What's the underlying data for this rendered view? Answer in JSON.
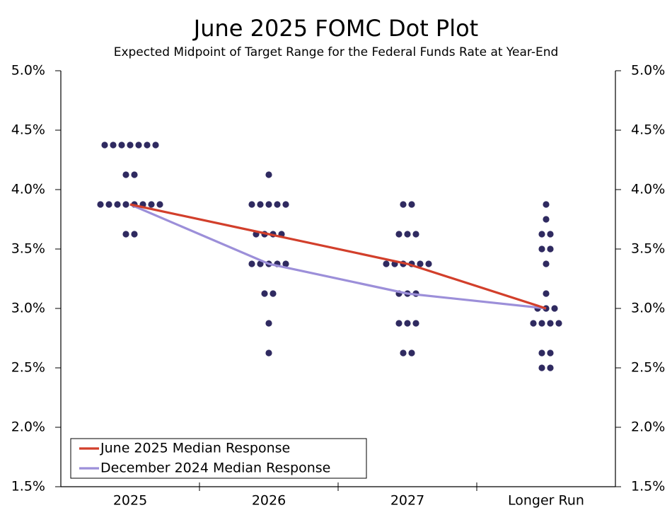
{
  "chart_data": {
    "type": "dotplot",
    "title": "June 2025 FOMC Dot Plot",
    "subtitle": "Expected Midpoint of Target Range for the Federal Funds Rate at Year-End",
    "categories": [
      "2025",
      "2026",
      "2027",
      "Longer Run"
    ],
    "dot_color": "#2f2a60",
    "dots": [
      [
        4.375,
        4.375,
        4.375,
        4.375,
        4.375,
        4.375,
        4.375,
        4.125,
        4.125,
        3.875,
        3.875,
        3.875,
        3.875,
        3.875,
        3.875,
        3.875,
        3.875,
        3.625,
        3.625
      ],
      [
        4.125,
        3.875,
        3.875,
        3.875,
        3.875,
        3.875,
        3.625,
        3.625,
        3.625,
        3.625,
        3.375,
        3.375,
        3.375,
        3.375,
        3.375,
        3.125,
        3.125,
        2.875,
        2.625
      ],
      [
        3.875,
        3.875,
        3.625,
        3.625,
        3.625,
        3.375,
        3.375,
        3.375,
        3.375,
        3.375,
        3.375,
        3.125,
        3.125,
        3.125,
        2.875,
        2.875,
        2.875,
        2.625,
        2.625
      ],
      [
        3.875,
        3.75,
        3.625,
        3.625,
        3.5,
        3.5,
        3.375,
        3.125,
        3.0,
        3.0,
        3.0,
        2.875,
        2.875,
        2.875,
        2.875,
        2.625,
        2.625,
        2.5,
        2.5
      ]
    ],
    "series": [
      {
        "name": "June 2025 Median Response",
        "color": "#d23f2b",
        "values": [
          3.875,
          3.625,
          3.375,
          3.0
        ]
      },
      {
        "name": "December 2024 Median Response",
        "color": "#9c8fd9",
        "values": [
          3.875,
          3.375,
          3.125,
          3.0
        ]
      }
    ],
    "ylim": [
      1.5,
      5.0
    ],
    "yticks": [
      {
        "value": 1.5,
        "label": "1.5%"
      },
      {
        "value": 2.0,
        "label": "2.0%"
      },
      {
        "value": 2.5,
        "label": "2.5%"
      },
      {
        "value": 3.0,
        "label": "3.0%"
      },
      {
        "value": 3.5,
        "label": "3.5%"
      },
      {
        "value": 4.0,
        "label": "4.0%"
      },
      {
        "value": 4.5,
        "label": "4.5%"
      },
      {
        "value": 5.0,
        "label": "5.0%"
      }
    ],
    "y2lim": [
      1.5,
      5.0
    ],
    "y2ticks": [
      {
        "value": 1.5,
        "label": "1.5%"
      },
      {
        "value": 2.0,
        "label": "2.0%"
      },
      {
        "value": 2.5,
        "label": "2.5%"
      },
      {
        "value": 3.0,
        "label": "3.0%"
      },
      {
        "value": 3.5,
        "label": "3.5%"
      },
      {
        "value": 4.0,
        "label": "4.0%"
      },
      {
        "value": 4.5,
        "label": "4.5%"
      },
      {
        "value": 5.0,
        "label": "5.0%"
      }
    ],
    "legend": "lower left"
  }
}
